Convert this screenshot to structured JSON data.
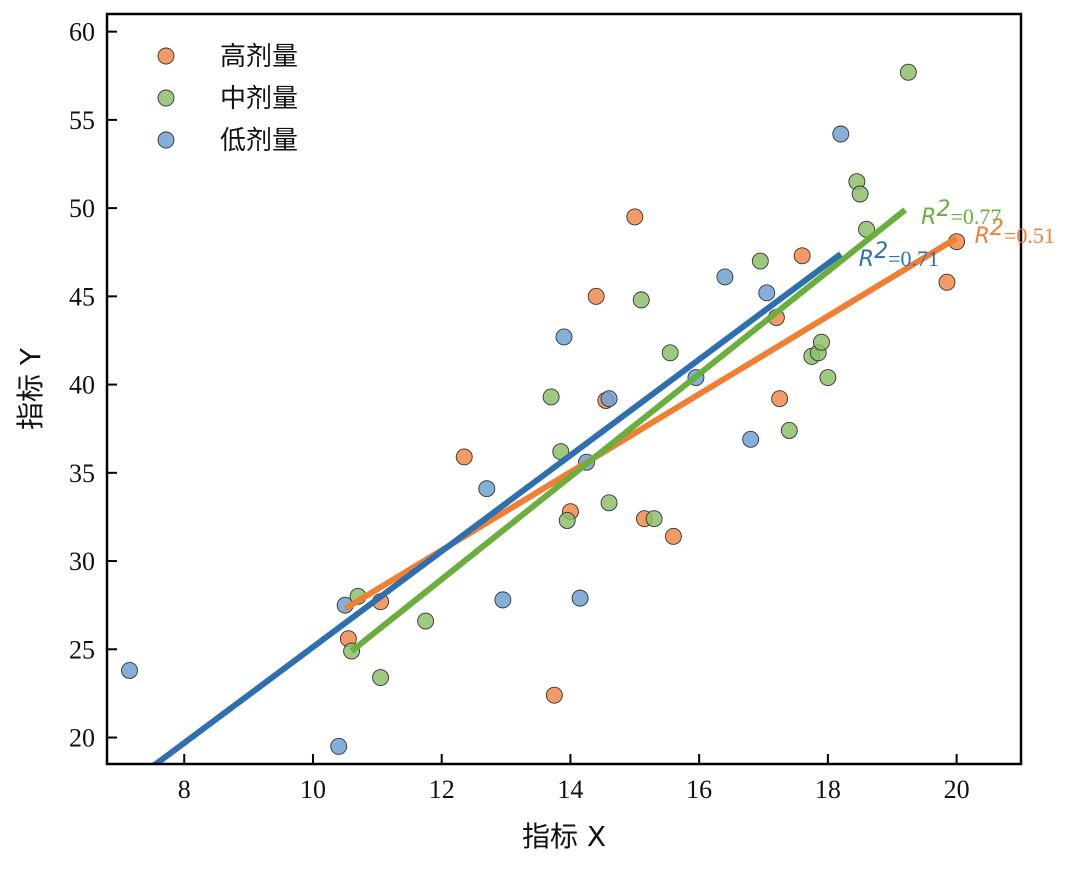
{
  "chart_data": {
    "type": "scatter",
    "title": "",
    "xlabel": "指标 X",
    "ylabel": "指标 Y",
    "xlim": [
      6.8,
      21.0
    ],
    "ylim": [
      18.5,
      61.0
    ],
    "xticks": [
      8,
      10,
      12,
      14,
      16,
      18,
      20
    ],
    "yticks": [
      20,
      25,
      30,
      35,
      40,
      45,
      50,
      55,
      60
    ],
    "grid": false,
    "legend_position": "top-left",
    "series": [
      {
        "name": "高剂量",
        "color": "#F08A4B",
        "fit_color": "#F07F33",
        "r2_text": "=0.51",
        "points": [
          [
            10.55,
            25.6
          ],
          [
            11.05,
            27.7
          ],
          [
            12.35,
            35.9
          ],
          [
            13.75,
            22.4
          ],
          [
            14.0,
            32.8
          ],
          [
            14.4,
            45.0
          ],
          [
            14.55,
            39.1
          ],
          [
            15.0,
            49.5
          ],
          [
            15.15,
            32.4
          ],
          [
            15.6,
            31.4
          ],
          [
            17.2,
            43.8
          ],
          [
            17.25,
            39.2
          ],
          [
            17.6,
            47.3
          ],
          [
            19.85,
            45.8
          ],
          [
            20.0,
            48.1
          ]
        ],
        "fit": [
          [
            10.5,
            27.3
          ],
          [
            20.0,
            48.3
          ]
        ]
      },
      {
        "name": "中剂量",
        "color": "#8CC06B",
        "fit_color": "#6AAF3E",
        "r2_text": "=0.77",
        "points": [
          [
            10.6,
            24.9
          ],
          [
            10.7,
            28.0
          ],
          [
            11.05,
            23.4
          ],
          [
            11.75,
            26.6
          ],
          [
            13.7,
            39.3
          ],
          [
            13.85,
            36.2
          ],
          [
            13.95,
            32.3
          ],
          [
            14.6,
            33.3
          ],
          [
            15.1,
            44.8
          ],
          [
            15.3,
            32.4
          ],
          [
            15.55,
            41.8
          ],
          [
            16.95,
            47.0
          ],
          [
            17.4,
            37.4
          ],
          [
            17.75,
            41.6
          ],
          [
            17.85,
            41.8
          ],
          [
            17.9,
            42.4
          ],
          [
            18.0,
            40.4
          ],
          [
            18.45,
            51.5
          ],
          [
            18.5,
            50.8
          ],
          [
            18.6,
            48.8
          ],
          [
            19.25,
            57.7
          ]
        ],
        "fit": [
          [
            10.6,
            24.9
          ],
          [
            19.2,
            49.9
          ]
        ]
      },
      {
        "name": "低剂量",
        "color": "#6FA1D2",
        "fit_color": "#2E6FAF",
        "r2_text": "=0.71",
        "points": [
          [
            7.15,
            23.8
          ],
          [
            10.4,
            19.5
          ],
          [
            10.5,
            27.5
          ],
          [
            12.7,
            34.1
          ],
          [
            12.95,
            27.8
          ],
          [
            13.9,
            42.7
          ],
          [
            14.15,
            27.9
          ],
          [
            14.25,
            35.6
          ],
          [
            14.6,
            39.2
          ],
          [
            15.95,
            40.4
          ],
          [
            16.4,
            46.1
          ],
          [
            16.8,
            36.9
          ],
          [
            17.05,
            45.2
          ],
          [
            18.2,
            54.2
          ]
        ],
        "fit": [
          [
            7.45,
            18.2
          ],
          [
            18.2,
            47.4
          ]
        ]
      }
    ]
  }
}
